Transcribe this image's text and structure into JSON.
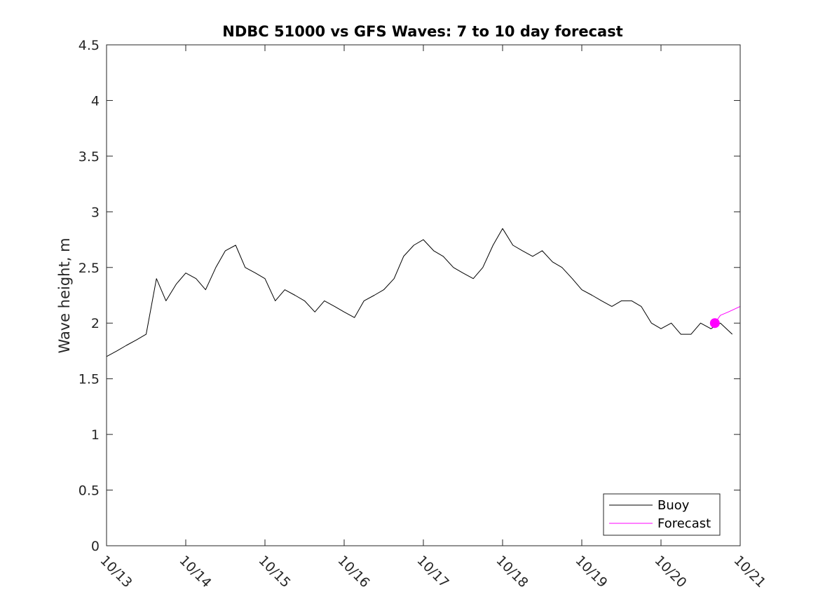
{
  "chart_data": {
    "type": "line",
    "title": "NDBC 51000 vs GFS Waves: 7 to 10 day forecast",
    "xlabel": "",
    "ylabel": "Wave height, m",
    "xlim": [
      0,
      8
    ],
    "ylim": [
      0,
      4.5
    ],
    "x_ticks": [
      0,
      1,
      2,
      3,
      4,
      5,
      6,
      7,
      8
    ],
    "x_tick_labels": [
      "10/13",
      "10/14",
      "10/15",
      "10/16",
      "10/17",
      "10/18",
      "10/19",
      "10/20",
      "10/21"
    ],
    "y_ticks": [
      0,
      0.5,
      1,
      1.5,
      2,
      2.5,
      3,
      3.5,
      4,
      4.5
    ],
    "y_tick_labels": [
      "0",
      "0.5",
      "1",
      "1.5",
      "2",
      "2.5",
      "3",
      "3.5",
      "4",
      "4.5"
    ],
    "x_unit": "days since 10/13",
    "legend": {
      "placement": "bottom-right",
      "entries": [
        "Buoy",
        "Forecast"
      ]
    },
    "series": [
      {
        "name": "Buoy",
        "color": "#000000",
        "x": [
          0,
          0.13,
          0.25,
          0.38,
          0.5,
          0.63,
          0.75,
          0.88,
          1,
          1.13,
          1.25,
          1.38,
          1.5,
          1.63,
          1.75,
          1.88,
          2,
          2.13,
          2.25,
          2.38,
          2.5,
          2.63,
          2.75,
          2.88,
          3,
          3.13,
          3.25,
          3.38,
          3.5,
          3.63,
          3.75,
          3.88,
          4,
          4.13,
          4.25,
          4.38,
          4.5,
          4.63,
          4.75,
          4.88,
          5,
          5.13,
          5.25,
          5.38,
          5.5,
          5.63,
          5.75,
          5.88,
          6,
          6.13,
          6.25,
          6.38,
          6.5,
          6.63,
          6.75,
          6.88,
          7,
          7.13,
          7.25,
          7.38,
          7.5,
          7.63,
          7.75,
          7.9
        ],
        "y": [
          1.7,
          1.75,
          1.8,
          1.85,
          1.9,
          2.4,
          2.2,
          2.35,
          2.45,
          2.4,
          2.3,
          2.5,
          2.65,
          2.7,
          2.5,
          2.45,
          2.4,
          2.2,
          2.3,
          2.25,
          2.2,
          2.1,
          2.2,
          2.15,
          2.1,
          2.05,
          2.2,
          2.25,
          2.3,
          2.4,
          2.6,
          2.7,
          2.75,
          2.65,
          2.6,
          2.5,
          2.45,
          2.4,
          2.5,
          2.7,
          2.85,
          2.7,
          2.65,
          2.6,
          2.65,
          2.55,
          2.5,
          2.4,
          2.3,
          2.25,
          2.2,
          2.15,
          2.2,
          2.2,
          2.15,
          2.0,
          1.95,
          2.0,
          1.9,
          1.9,
          2.0,
          1.95,
          2.0,
          1.9
        ]
      },
      {
        "name": "Forecast",
        "color": "#ff00ff",
        "x": [
          7.68,
          7.75,
          7.85,
          8.0
        ],
        "y": [
          2.0,
          2.07,
          2.1,
          2.15
        ],
        "marker": {
          "x": 7.68,
          "y": 2.0
        }
      }
    ]
  }
}
